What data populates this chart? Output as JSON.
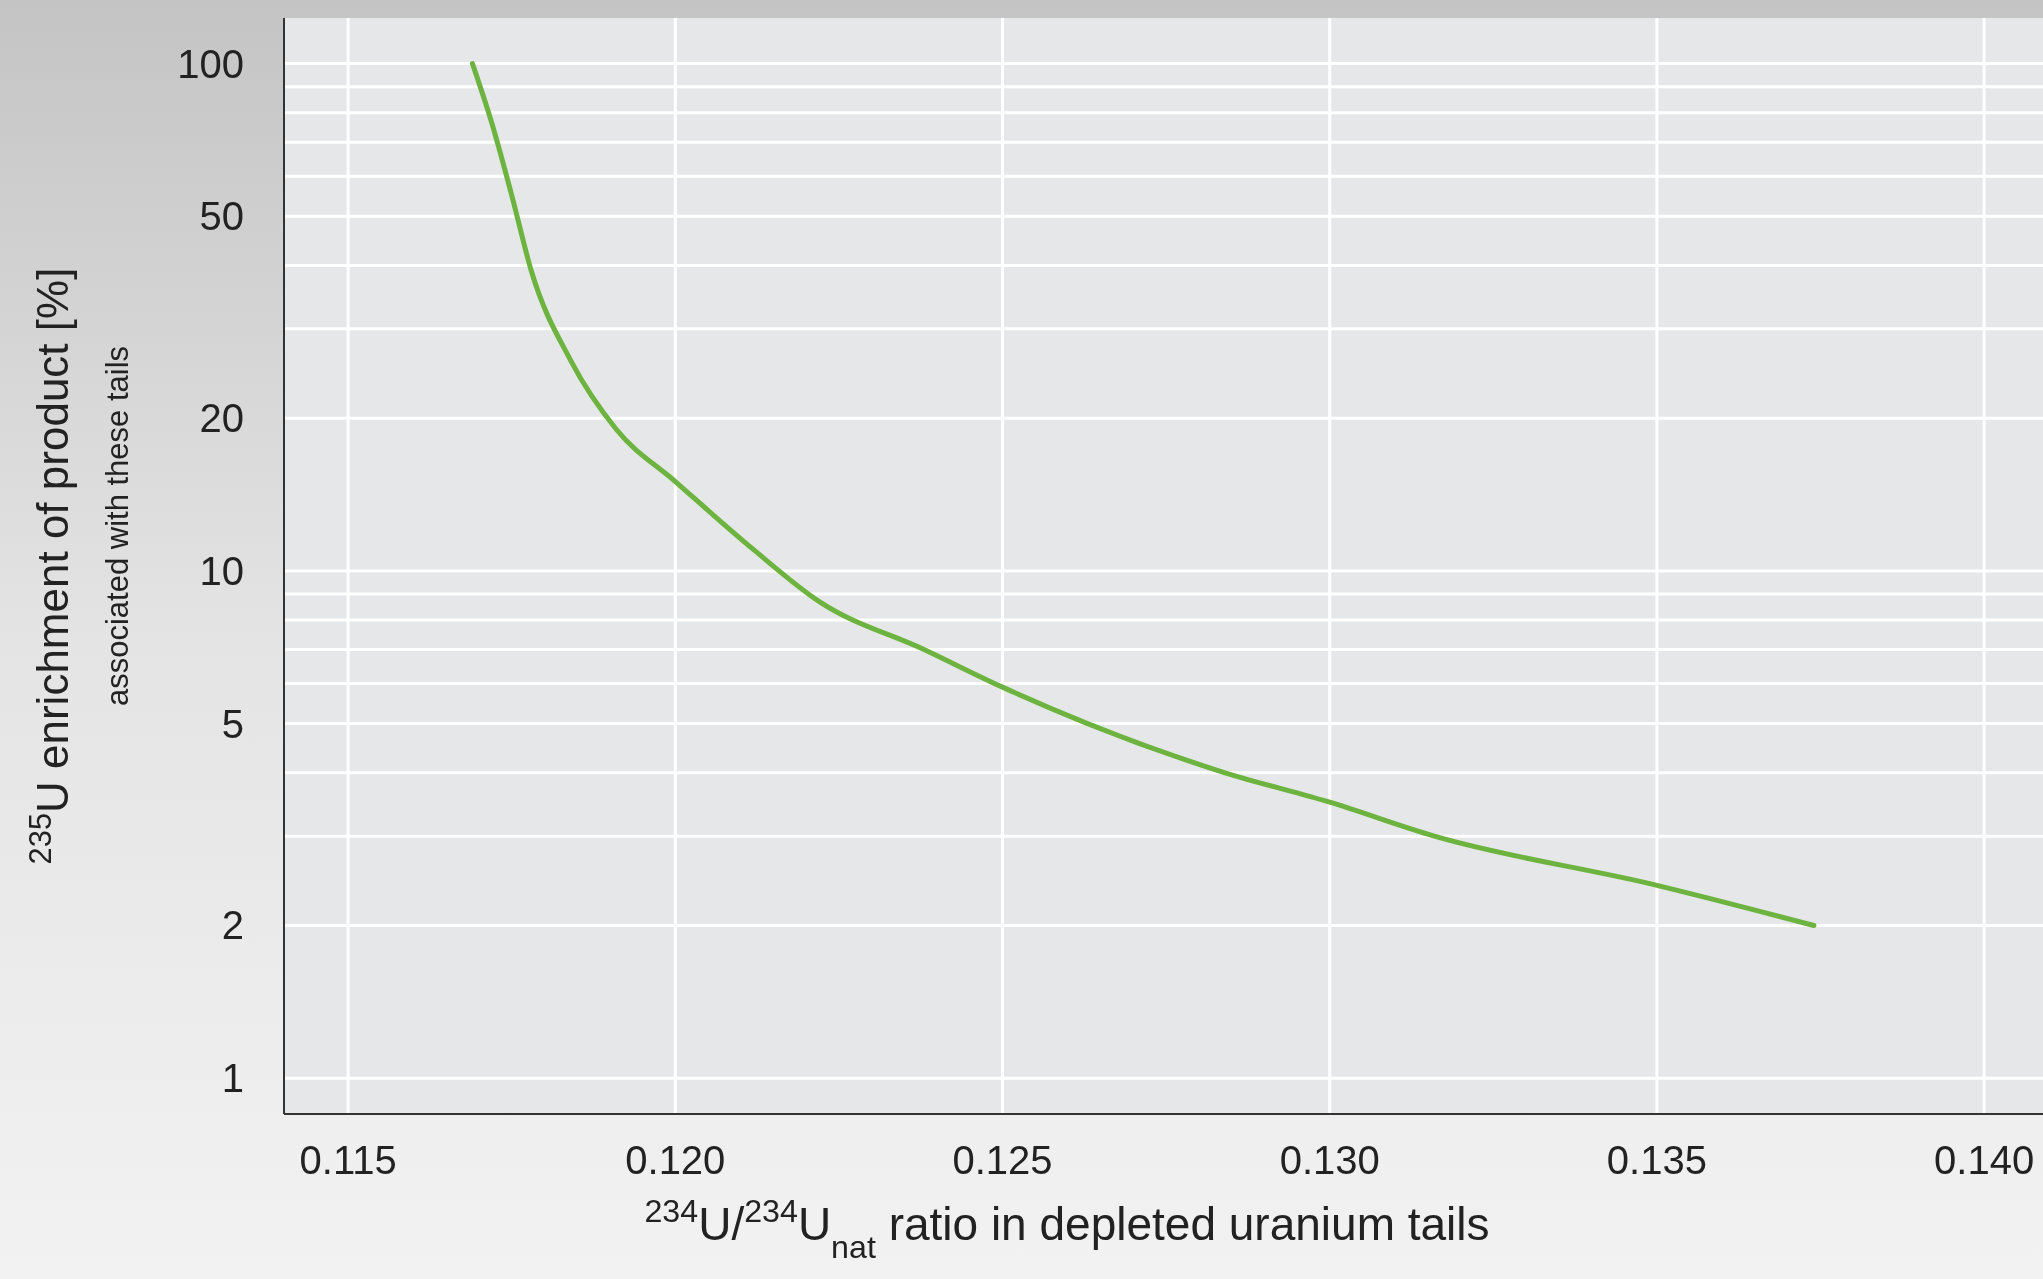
{
  "chart_data": {
    "type": "line",
    "xlabel": "$^{234}$U/$^{234}$U$_{nat}$ ratio in depleted uranium tails",
    "ylabel": "$^{235}$U enrichment of product [%]",
    "annotations": [
      "associated with these tails"
    ],
    "log": "y",
    "grid": true,
    "marker": "none",
    "line_style": "solid",
    "x": [
      0.1169,
      0.1172,
      0.1175,
      0.1178,
      0.1184,
      0.1191,
      0.12,
      0.1212,
      0.1222,
      0.1238,
      0.125,
      0.1263,
      0.1284,
      0.13,
      0.1316,
      0.135,
      0.1374
    ],
    "series": [
      {
        "color": "#6db33f",
        "values": [
          100,
          76,
          55,
          39,
          26,
          19,
          15,
          11,
          8.7,
          7.0,
          5.9,
          5.0,
          4.0,
          3.5,
          3.0,
          2.4,
          2.0
        ]
      }
    ],
    "xlim": [
      0.11402,
      0.1409
    ],
    "xticks": [
      {
        "value": 0.115,
        "label": "0.115"
      },
      {
        "value": 0.12,
        "label": "0.120"
      },
      {
        "value": 0.125,
        "label": "0.125"
      },
      {
        "value": 0.13,
        "label": "0.130"
      },
      {
        "value": 0.135,
        "label": "0.135"
      },
      {
        "value": 0.14,
        "label": "0.140"
      }
    ],
    "ylim": [
      0.85,
      123
    ],
    "yticks": [
      1,
      2,
      {
        "value": 3,
        "label": null
      },
      {
        "value": 4,
        "label": null
      },
      5,
      {
        "value": 6,
        "label": null
      },
      {
        "value": 7,
        "label": null
      },
      {
        "value": 8,
        "label": null
      },
      {
        "value": 9,
        "label": null
      },
      10,
      20,
      {
        "value": 30,
        "label": null
      },
      {
        "value": 40,
        "label": null
      },
      50,
      {
        "value": 60,
        "label": null
      },
      {
        "value": 70,
        "label": null
      },
      {
        "value": 80,
        "label": null
      },
      {
        "value": 90,
        "label": null
      },
      100
    ]
  }
}
